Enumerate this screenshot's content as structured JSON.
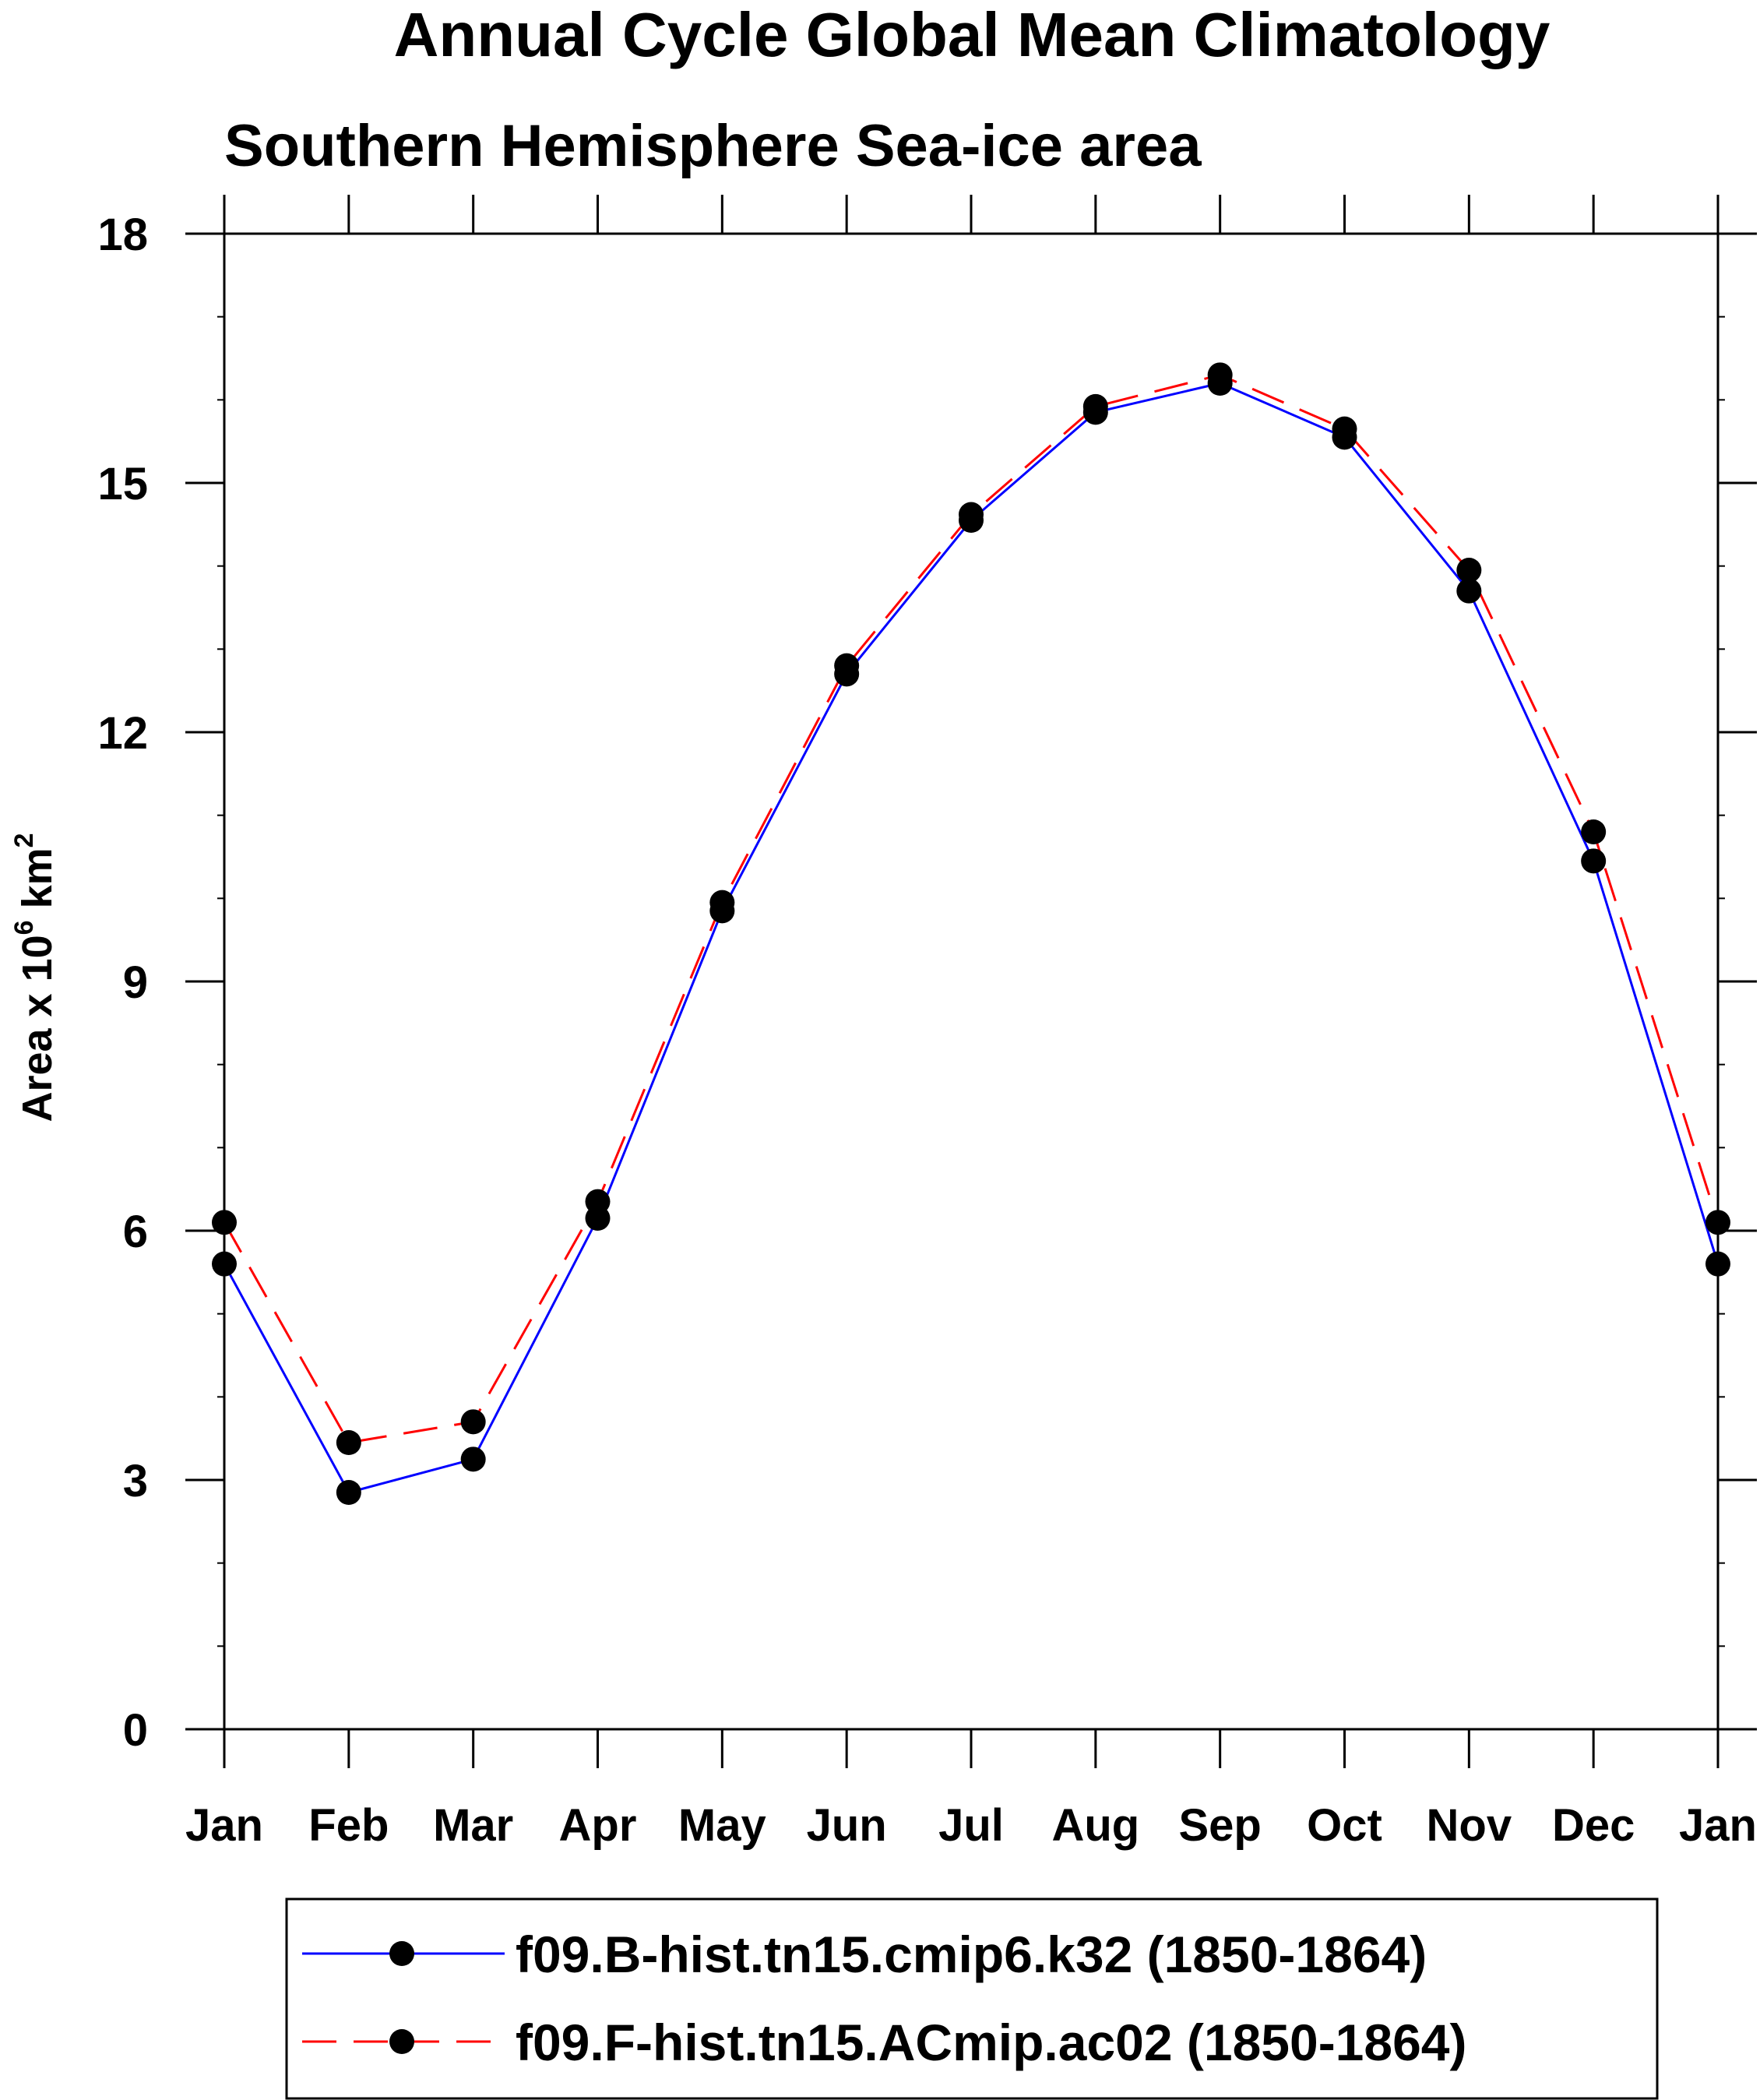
{
  "chart_data": {
    "type": "line",
    "title": "Annual Cycle Global Mean Climatology",
    "subtitle": "Southern Hemisphere Sea-ice area",
    "ylabel": "Area x 10",
    "ylabel_sup": "6",
    "ylabel_unit": " km",
    "ylabel_unit_sup": "2",
    "ylim": [
      0,
      18
    ],
    "yticks": [
      "0",
      "3",
      "6",
      "9",
      "12",
      "15",
      "18"
    ],
    "categories": [
      "Jan",
      "Feb",
      "Mar",
      "Apr",
      "May",
      "Jun",
      "Jul",
      "Aug",
      "Sep",
      "Oct",
      "Nov",
      "Dec",
      "Jan"
    ],
    "series": [
      {
        "name": "f09.B-hist.tn15.cmip6.k32 (1850-1864)",
        "color": "#0000ff",
        "style": "solid",
        "values": [
          5.6,
          2.85,
          3.25,
          6.15,
          9.85,
          12.7,
          14.55,
          15.85,
          16.2,
          15.55,
          13.7,
          10.45,
          5.6
        ]
      },
      {
        "name": "f09.F-hist.tn15.ACmip.ac02 (1850-1864)",
        "color": "#ff0000",
        "style": "dashed",
        "values": [
          6.1,
          3.45,
          3.7,
          6.35,
          9.95,
          12.8,
          14.62,
          15.92,
          16.3,
          15.65,
          13.95,
          10.8,
          6.1
        ]
      }
    ],
    "legend": "bottom"
  }
}
